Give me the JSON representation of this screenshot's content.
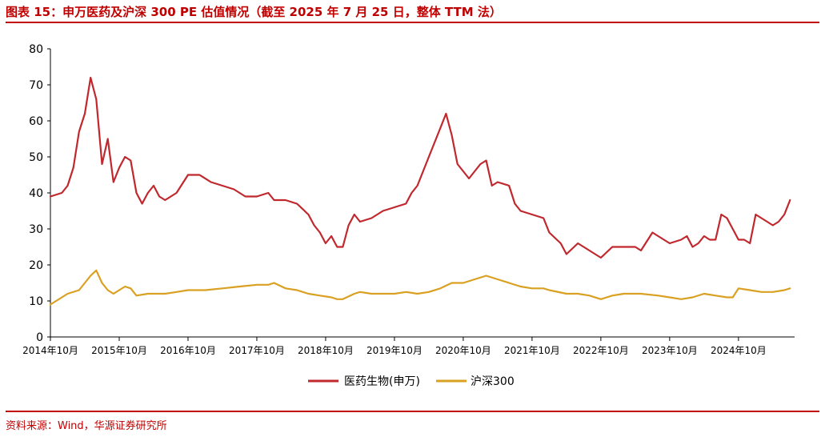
{
  "header": {
    "title": "图表 15：申万医药及沪深 300 PE 估值情况（截至 2025 年 7 月 25 日，整体 TTM 法）"
  },
  "footer": {
    "source": "资料来源：Wind，华源证券研究所"
  },
  "colors": {
    "accent": "#c00000",
    "pharma": "#c0282d",
    "csi300": "#d9a021"
  },
  "chart_data": {
    "type": "line",
    "ylim": [
      0,
      80
    ],
    "yticks": [
      0,
      10,
      20,
      30,
      40,
      50,
      60,
      70,
      80
    ],
    "xlim": [
      "2014-10-01",
      "2025-07-25"
    ],
    "xticks": [
      "2014年10月",
      "2015年10月",
      "2016年10月",
      "2017年10月",
      "2018年10月",
      "2019年10月",
      "2020年10月",
      "2021年10月",
      "2022年10月",
      "2023年10月",
      "2024年10月"
    ],
    "legend_position": "bottom-center",
    "grid": false,
    "series": [
      {
        "name": "医药生物(申万)",
        "color": "#c0282d",
        "points": [
          [
            "2014-10",
            39
          ],
          [
            "2014-12",
            40
          ],
          [
            "2015-01",
            42
          ],
          [
            "2015-02",
            47
          ],
          [
            "2015-03",
            57
          ],
          [
            "2015-04",
            62
          ],
          [
            "2015-05",
            72
          ],
          [
            "2015-06",
            66
          ],
          [
            "2015-07",
            48
          ],
          [
            "2015-08",
            55
          ],
          [
            "2015-09",
            43
          ],
          [
            "2015-10",
            47
          ],
          [
            "2015-11",
            50
          ],
          [
            "2015-12",
            49
          ],
          [
            "2016-01",
            40
          ],
          [
            "2016-02",
            37
          ],
          [
            "2016-03",
            40
          ],
          [
            "2016-04",
            42
          ],
          [
            "2016-05",
            39
          ],
          [
            "2016-06",
            38
          ],
          [
            "2016-08",
            40
          ],
          [
            "2016-10",
            45
          ],
          [
            "2016-12",
            45
          ],
          [
            "2017-02",
            43
          ],
          [
            "2017-04",
            42
          ],
          [
            "2017-06",
            41
          ],
          [
            "2017-08",
            39
          ],
          [
            "2017-10",
            39
          ],
          [
            "2017-12",
            40
          ],
          [
            "2018-01",
            38
          ],
          [
            "2018-03",
            38
          ],
          [
            "2018-05",
            37
          ],
          [
            "2018-07",
            34
          ],
          [
            "2018-08",
            31
          ],
          [
            "2018-09",
            29
          ],
          [
            "2018-10",
            26
          ],
          [
            "2018-11",
            28
          ],
          [
            "2018-12",
            25
          ],
          [
            "2019-01",
            25
          ],
          [
            "2019-02",
            31
          ],
          [
            "2019-03",
            34
          ],
          [
            "2019-04",
            32
          ],
          [
            "2019-06",
            33
          ],
          [
            "2019-08",
            35
          ],
          [
            "2019-10",
            36
          ],
          [
            "2019-12",
            37
          ],
          [
            "2020-01",
            40
          ],
          [
            "2020-02",
            42
          ],
          [
            "2020-04",
            50
          ],
          [
            "2020-06",
            58
          ],
          [
            "2020-07",
            62
          ],
          [
            "2020-08",
            56
          ],
          [
            "2020-09",
            48
          ],
          [
            "2020-10",
            46
          ],
          [
            "2020-11",
            44
          ],
          [
            "2020-12",
            46
          ],
          [
            "2021-01",
            48
          ],
          [
            "2021-02",
            49
          ],
          [
            "2021-03",
            42
          ],
          [
            "2021-04",
            43
          ],
          [
            "2021-06",
            42
          ],
          [
            "2021-07",
            37
          ],
          [
            "2021-08",
            35
          ],
          [
            "2021-10",
            34
          ],
          [
            "2021-12",
            33
          ],
          [
            "2022-01",
            29
          ],
          [
            "2022-03",
            26
          ],
          [
            "2022-04",
            23
          ],
          [
            "2022-06",
            26
          ],
          [
            "2022-08",
            24
          ],
          [
            "2022-10",
            22
          ],
          [
            "2022-12",
            25
          ],
          [
            "2023-02",
            25
          ],
          [
            "2023-04",
            25
          ],
          [
            "2023-05",
            24
          ],
          [
            "2023-07",
            29
          ],
          [
            "2023-08",
            28
          ],
          [
            "2023-10",
            26
          ],
          [
            "2023-12",
            27
          ],
          [
            "2024-01",
            28
          ],
          [
            "2024-02",
            25
          ],
          [
            "2024-03",
            26
          ],
          [
            "2024-04",
            28
          ],
          [
            "2024-05",
            27
          ],
          [
            "2024-06",
            27
          ],
          [
            "2024-07",
            34
          ],
          [
            "2024-08",
            33
          ],
          [
            "2024-09",
            30
          ],
          [
            "2024-10",
            27
          ],
          [
            "2024-11",
            27
          ],
          [
            "2024-12",
            26
          ],
          [
            "2025-01",
            34
          ],
          [
            "2025-02",
            33
          ],
          [
            "2025-03",
            32
          ],
          [
            "2025-04",
            31
          ],
          [
            "2025-05",
            32
          ],
          [
            "2025-06",
            34
          ],
          [
            "2025-07",
            38
          ]
        ]
      },
      {
        "name": "沪深300",
        "color": "#d9a021",
        "points": [
          [
            "2014-10",
            9
          ],
          [
            "2014-12",
            11
          ],
          [
            "2015-01",
            12
          ],
          [
            "2015-03",
            13
          ],
          [
            "2015-04",
            15
          ],
          [
            "2015-05",
            17
          ],
          [
            "2015-06",
            18.5
          ],
          [
            "2015-07",
            15
          ],
          [
            "2015-08",
            13
          ],
          [
            "2015-09",
            12
          ],
          [
            "2015-10",
            13
          ],
          [
            "2015-11",
            14
          ],
          [
            "2015-12",
            13.5
          ],
          [
            "2016-01",
            11.5
          ],
          [
            "2016-03",
            12
          ],
          [
            "2016-06",
            12
          ],
          [
            "2016-08",
            12.5
          ],
          [
            "2016-10",
            13
          ],
          [
            "2017-01",
            13
          ],
          [
            "2017-04",
            13.5
          ],
          [
            "2017-07",
            14
          ],
          [
            "2017-10",
            14.5
          ],
          [
            "2017-12",
            14.5
          ],
          [
            "2018-01",
            15
          ],
          [
            "2018-03",
            13.5
          ],
          [
            "2018-05",
            13
          ],
          [
            "2018-07",
            12
          ],
          [
            "2018-09",
            11.5
          ],
          [
            "2018-11",
            11
          ],
          [
            "2018-12",
            10.5
          ],
          [
            "2019-01",
            10.5
          ],
          [
            "2019-03",
            12
          ],
          [
            "2019-04",
            12.5
          ],
          [
            "2019-06",
            12
          ],
          [
            "2019-08",
            12
          ],
          [
            "2019-10",
            12
          ],
          [
            "2019-12",
            12.5
          ],
          [
            "2020-02",
            12
          ],
          [
            "2020-04",
            12.5
          ],
          [
            "2020-06",
            13.5
          ],
          [
            "2020-08",
            15
          ],
          [
            "2020-10",
            15
          ],
          [
            "2020-12",
            16
          ],
          [
            "2021-02",
            17
          ],
          [
            "2021-04",
            16
          ],
          [
            "2021-06",
            15
          ],
          [
            "2021-08",
            14
          ],
          [
            "2021-10",
            13.5
          ],
          [
            "2021-12",
            13.5
          ],
          [
            "2022-01",
            13
          ],
          [
            "2022-04",
            12
          ],
          [
            "2022-06",
            12
          ],
          [
            "2022-08",
            11.5
          ],
          [
            "2022-10",
            10.5
          ],
          [
            "2022-12",
            11.5
          ],
          [
            "2023-02",
            12
          ],
          [
            "2023-05",
            12
          ],
          [
            "2023-08",
            11.5
          ],
          [
            "2023-10",
            11
          ],
          [
            "2023-12",
            10.5
          ],
          [
            "2024-02",
            11
          ],
          [
            "2024-04",
            12
          ],
          [
            "2024-06",
            11.5
          ],
          [
            "2024-08",
            11
          ],
          [
            "2024-09",
            11
          ],
          [
            "2024-10",
            13.5
          ],
          [
            "2024-12",
            13
          ],
          [
            "2025-02",
            12.5
          ],
          [
            "2025-04",
            12.5
          ],
          [
            "2025-06",
            13
          ],
          [
            "2025-07",
            13.5
          ]
        ]
      }
    ]
  }
}
